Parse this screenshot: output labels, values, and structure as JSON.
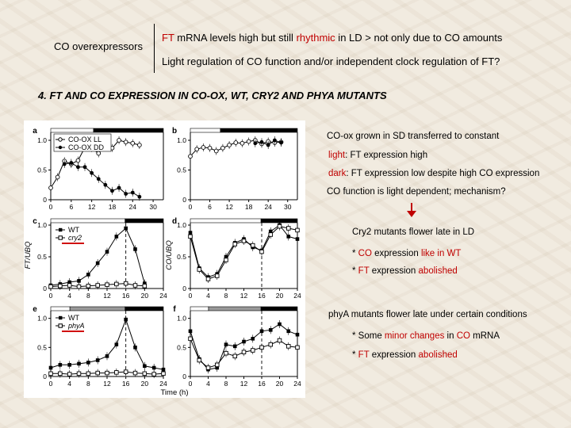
{
  "header": {
    "left_label": "CO overexpressors",
    "line1_parts": [
      "FT",
      " mRNA levels high but still ",
      "rhythmic",
      " in LD > not only due to CO amounts"
    ],
    "line2": "Light regulation of CO function and/or independent clock regulation of FT?"
  },
  "section_heading": "4. FT AND CO EXPRESSION IN CO-OX, WT, CRY2 AND PHYA MUTANTS",
  "notes": {
    "coox_1": "CO-ox grown in SD transferred to constant",
    "coox_2_parts": [
      "light",
      ": FT expression high"
    ],
    "coox_3_parts": [
      "dark",
      ": FT expression low despite high CO expression"
    ],
    "coox_4": "CO function is light dependent; mechanism?",
    "cry2_1": "Cry2 mutants flower late in LD",
    "cry2_2_parts": [
      "* ",
      "CO",
      " expression ",
      "like in WT"
    ],
    "cry2_3_parts": [
      "* ",
      "FT",
      " expression ",
      "abolished"
    ],
    "phya_1": "phyA mutants flower late under certain conditions",
    "phya_2_parts": [
      "* Some ",
      "minor changes",
      " in ",
      "CO",
      " mRNA"
    ],
    "phya_3_parts": [
      "* ",
      "FT",
      " expression ",
      "abolished"
    ]
  },
  "colors": {
    "highlight": "#c00000",
    "marker": "#d01010"
  },
  "figure": {
    "y_axis_left": "FT/UBQ",
    "y_axis_right": "CO/UBQ",
    "x_axis_label": "Time (h)",
    "panels": [
      {
        "letter": "a",
        "legend": [
          "CO-OX LL",
          "CO-OX DD"
        ],
        "y_ticks": [
          "1.0",
          "0.5",
          "0"
        ],
        "x_ticks": [
          "0",
          "6",
          "12",
          "18",
          "24",
          "30"
        ]
      },
      {
        "letter": "b",
        "legend": [],
        "y_ticks": [
          "1.0",
          "0.5",
          "0"
        ],
        "x_ticks": [
          "0",
          "6",
          "12",
          "18",
          "24",
          "30"
        ]
      },
      {
        "letter": "c",
        "legend": [
          "WT",
          "cry2"
        ],
        "y_ticks": [
          "1.0",
          "0.5",
          "0"
        ],
        "x_ticks": [
          "0",
          "4",
          "8",
          "12",
          "16",
          "20",
          "24"
        ]
      },
      {
        "letter": "d",
        "legend": [],
        "y_ticks": [
          "1.0",
          "0.5",
          "0"
        ],
        "x_ticks": [
          "0",
          "4",
          "8",
          "12",
          "16",
          "20",
          "24"
        ]
      },
      {
        "letter": "e",
        "legend": [
          "WT",
          "phyA"
        ],
        "y_ticks": [
          "1.0",
          "0.5",
          "0"
        ],
        "x_ticks": [
          "0",
          "4",
          "8",
          "12",
          "16",
          "20",
          "24"
        ]
      },
      {
        "letter": "f",
        "legend": [],
        "y_ticks": [
          "1.0",
          "0.5",
          "0"
        ],
        "x_ticks": [
          "0",
          "4",
          "8",
          "12",
          "16",
          "20",
          "24"
        ]
      }
    ]
  },
  "chart_data": [
    {
      "type": "line",
      "panel": "a",
      "xlim": [
        0,
        33
      ],
      "ylim": [
        0,
        1.2
      ],
      "series": [
        {
          "name": "CO-OX LL",
          "x": [
            0,
            2,
            4,
            6,
            8,
            10,
            12,
            14,
            16,
            18,
            20,
            22,
            24,
            26
          ],
          "y": [
            0.2,
            0.38,
            0.65,
            0.6,
            0.66,
            0.88,
            0.87,
            0.78,
            0.92,
            0.87,
            1.0,
            0.97,
            0.95,
            0.92
          ]
        },
        {
          "name": "CO-OX DD",
          "x": [
            4,
            6,
            8,
            10,
            12,
            14,
            16,
            18,
            20,
            22,
            24,
            26
          ],
          "y": [
            0.6,
            0.62,
            0.55,
            0.55,
            0.45,
            0.35,
            0.25,
            0.15,
            0.2,
            0.1,
            0.12,
            0.05
          ]
        }
      ]
    },
    {
      "type": "line",
      "panel": "b",
      "xlim": [
        0,
        33
      ],
      "ylim": [
        0,
        1.2
      ],
      "series": [
        {
          "name": "",
          "x": [
            0,
            2,
            4,
            6,
            8,
            10,
            12,
            14,
            16,
            18,
            20,
            22,
            24,
            26,
            28
          ],
          "y": [
            0.73,
            0.85,
            0.88,
            0.87,
            0.82,
            0.87,
            0.92,
            0.96,
            0.95,
            0.98,
            1.0,
            0.94,
            0.98,
            0.96,
            0.97
          ]
        },
        {
          "name": "",
          "x": [
            20,
            22,
            24,
            26,
            28
          ],
          "y": [
            0.95,
            0.97,
            0.92,
            1.0,
            0.96
          ]
        }
      ]
    },
    {
      "type": "line",
      "panel": "c",
      "xlim": [
        0,
        24
      ],
      "ylim": [
        0,
        1.1
      ],
      "series": [
        {
          "name": "WT",
          "x": [
            0,
            2,
            4,
            6,
            8,
            10,
            12,
            14,
            16,
            18,
            20
          ],
          "y": [
            0.05,
            0.07,
            0.1,
            0.12,
            0.22,
            0.4,
            0.58,
            0.82,
            0.95,
            0.62,
            0.08
          ]
        },
        {
          "name": "cry2",
          "x": [
            0,
            2,
            4,
            6,
            8,
            10,
            12,
            14,
            16,
            18,
            20
          ],
          "y": [
            0.03,
            0.04,
            0.05,
            0.03,
            0.04,
            0.05,
            0.06,
            0.07,
            0.08,
            0.05,
            0.04
          ]
        }
      ]
    },
    {
      "type": "line",
      "panel": "d",
      "xlim": [
        0,
        24
      ],
      "ylim": [
        0,
        1.1
      ],
      "series": [
        {
          "name": "WT",
          "x": [
            0,
            2,
            4,
            6,
            8,
            10,
            12,
            14,
            16,
            18,
            20,
            22,
            24
          ],
          "y": [
            0.88,
            0.32,
            0.18,
            0.23,
            0.5,
            0.72,
            0.78,
            0.65,
            0.6,
            0.9,
            1.0,
            0.82,
            0.78
          ]
        },
        {
          "name": "cry2",
          "x": [
            0,
            2,
            4,
            6,
            8,
            10,
            12,
            14,
            16,
            18,
            20,
            22,
            24
          ],
          "y": [
            0.82,
            0.3,
            0.15,
            0.2,
            0.45,
            0.7,
            0.75,
            0.68,
            0.58,
            0.85,
            0.98,
            0.95,
            0.92
          ]
        }
      ]
    },
    {
      "type": "line",
      "panel": "e",
      "xlim": [
        0,
        24
      ],
      "ylim": [
        0,
        1.2
      ],
      "series": [
        {
          "name": "WT",
          "x": [
            0,
            2,
            4,
            6,
            8,
            10,
            12,
            14,
            16,
            18,
            20,
            22,
            24
          ],
          "y": [
            0.15,
            0.2,
            0.2,
            0.22,
            0.24,
            0.28,
            0.35,
            0.55,
            0.98,
            0.5,
            0.18,
            0.15,
            0.12
          ]
        },
        {
          "name": "phyA",
          "x": [
            0,
            2,
            4,
            6,
            8,
            10,
            12,
            14,
            16,
            18,
            20,
            22,
            24
          ],
          "y": [
            0.05,
            0.05,
            0.04,
            0.05,
            0.05,
            0.06,
            0.06,
            0.07,
            0.08,
            0.06,
            0.05,
            0.04,
            0.05
          ]
        }
      ]
    },
    {
      "type": "line",
      "panel": "f",
      "xlim": [
        0,
        24
      ],
      "ylim": [
        0,
        1.2
      ],
      "series": [
        {
          "name": "WT",
          "x": [
            0,
            2,
            4,
            6,
            8,
            10,
            12,
            14,
            16,
            18,
            20,
            22,
            24
          ],
          "y": [
            0.78,
            0.3,
            0.12,
            0.15,
            0.55,
            0.52,
            0.6,
            0.65,
            0.78,
            0.8,
            0.9,
            0.78,
            0.72
          ]
        },
        {
          "name": "phyA",
          "x": [
            0,
            2,
            4,
            6,
            8,
            10,
            12,
            14,
            16,
            18,
            20,
            22,
            24
          ],
          "y": [
            0.65,
            0.28,
            0.15,
            0.2,
            0.4,
            0.35,
            0.42,
            0.45,
            0.5,
            0.55,
            0.62,
            0.52,
            0.5
          ]
        }
      ]
    }
  ]
}
